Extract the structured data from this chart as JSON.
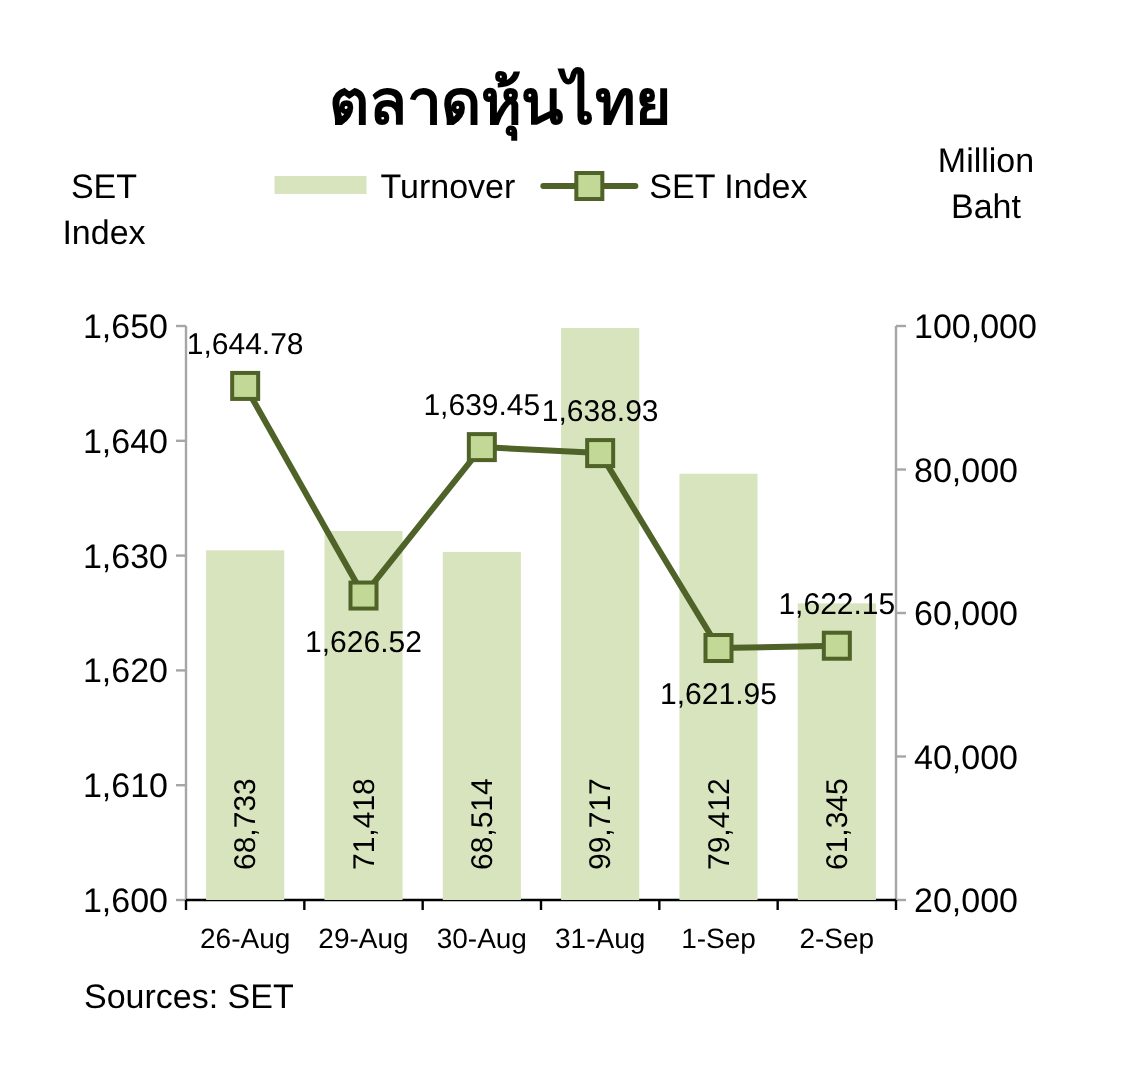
{
  "chart_data": {
    "type": "bar",
    "title": "ตลาดหุ้นไทย",
    "ylabel": "SET Index",
    "y2label": "Million Baht",
    "categories": [
      "26-Aug",
      "29-Aug",
      "30-Aug",
      "31-Aug",
      "1-Sep",
      "2-Sep"
    ],
    "series": [
      {
        "name": "Turnover",
        "axis": "y2",
        "color": "#d7e4bd",
        "values": [
          68733,
          71418,
          68514,
          99717,
          79412,
          61345
        ],
        "value_labels": [
          "68,733",
          "71,418",
          "68,514",
          "99,717",
          "79,412",
          "61,345"
        ]
      },
      {
        "name": "SET Index",
        "type": "line",
        "color": "#4f6228",
        "values": [
          1644.78,
          1626.52,
          1639.45,
          1638.93,
          1621.95,
          1622.15
        ],
        "value_labels": [
          "1,644.78",
          "1,626.52",
          "1,639.45",
          "1,638.93",
          "1,621.95",
          "1,622.15"
        ]
      }
    ],
    "ylim": [
      1600,
      1650
    ],
    "yticks": [
      {
        "value": 1600,
        "label": "1,600"
      },
      {
        "value": 1610,
        "label": "1,610"
      },
      {
        "value": 1620,
        "label": "1,620"
      },
      {
        "value": 1630,
        "label": "1,630"
      },
      {
        "value": 1640,
        "label": "1,640"
      },
      {
        "value": 1650,
        "label": "1,650"
      }
    ],
    "y2lim": [
      20000,
      100000
    ],
    "y2ticks": [
      {
        "value": 20000,
        "label": "20,000"
      },
      {
        "value": 40000,
        "label": "40,000"
      },
      {
        "value": 60000,
        "label": "60,000"
      },
      {
        "value": 80000,
        "label": "80,000"
      },
      {
        "value": 100000,
        "label": "100,000"
      }
    ],
    "legend": "top",
    "marker": "square",
    "line_style": "solid",
    "annotations": [
      "Sources: SET"
    ]
  }
}
